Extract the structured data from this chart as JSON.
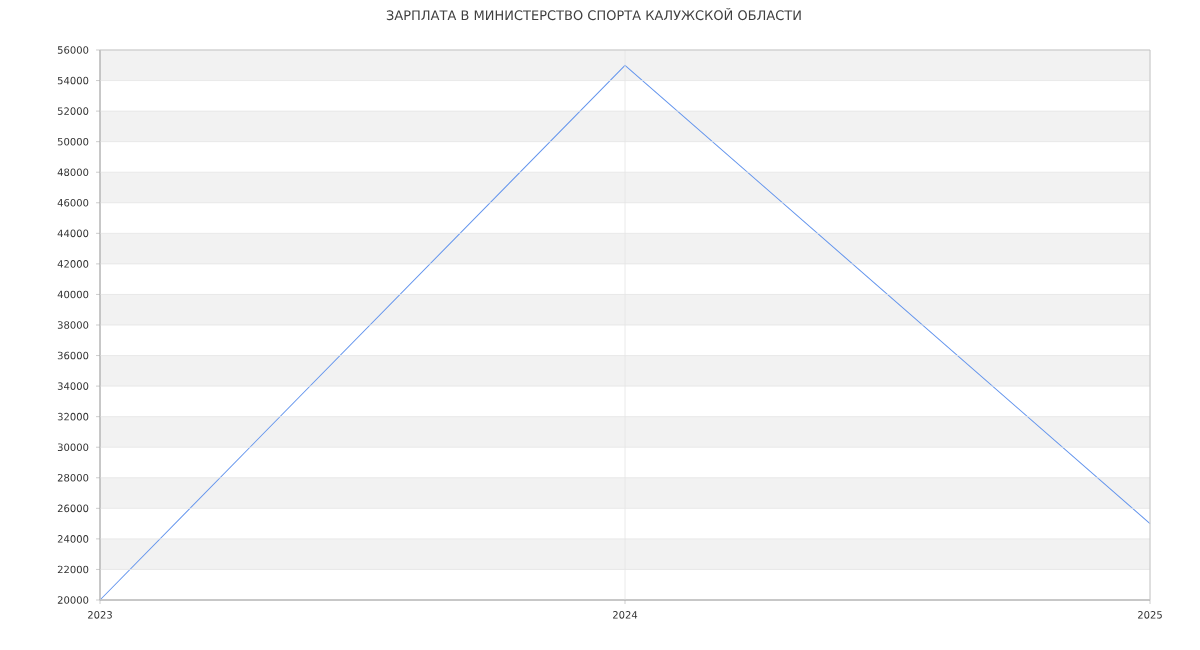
{
  "chart_data": {
    "type": "line",
    "title": "ЗАРПЛАТА В МИНИСТЕРСТВО СПОРТА КАЛУЖСКОЙ ОБЛАСТИ",
    "x": [
      2023,
      2024,
      2025
    ],
    "values": [
      20000,
      55000,
      25000
    ],
    "color": "#6495ed",
    "xlim": [
      2023,
      2025
    ],
    "xticks": [
      2023,
      2024,
      2025
    ],
    "ylim": [
      20000,
      56000
    ],
    "yticks": [
      20000,
      22000,
      24000,
      26000,
      28000,
      30000,
      32000,
      34000,
      36000,
      38000,
      40000,
      42000,
      44000,
      46000,
      48000,
      50000,
      52000,
      54000,
      56000
    ],
    "grid": true
  }
}
